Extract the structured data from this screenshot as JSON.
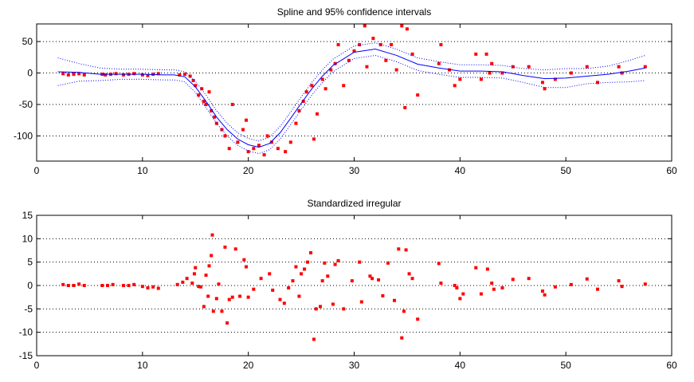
{
  "chart_data": [
    {
      "type": "line",
      "title": "Spline and 95% confidence intervals",
      "xlim": [
        0,
        60
      ],
      "ylim": [
        -140,
        78
      ],
      "xticks": [
        0,
        10,
        20,
        30,
        40,
        50,
        60
      ],
      "yticks": [
        -100,
        -50,
        0,
        50
      ],
      "grid": true,
      "series": [
        {
          "color": "#ff0000",
          "marker": "square",
          "x": [
            2.5,
            3,
            3.5,
            4,
            4.5,
            6.2,
            6.5,
            7,
            7.5,
            8.2,
            8.7,
            9.2,
            10,
            10.5,
            11,
            11.5,
            13.5,
            14,
            14.5,
            14.8,
            15,
            15.3,
            15.6,
            15.8,
            16,
            16.3,
            16.5,
            16.8,
            17,
            17.5,
            17.8,
            18.2,
            18.5,
            19,
            19.5,
            19.8,
            20,
            20.5,
            21,
            21.5,
            21.8,
            22.2,
            22.8,
            23.5,
            24,
            24.5,
            24.8,
            25.2,
            25.5,
            26,
            26.2,
            26.5,
            27,
            27.3,
            27.8,
            28.2,
            28.5,
            29,
            29.5,
            30,
            30.5,
            31,
            31.2,
            31.8,
            32.5,
            33,
            33.5,
            34,
            34.5,
            34.8,
            35,
            35.5,
            36,
            38,
            38.2,
            39,
            39.5,
            40,
            41.5,
            42,
            42.5,
            42.8,
            43,
            44,
            45,
            46.5,
            47.8,
            48,
            49,
            50.5,
            52,
            53,
            55,
            55.3,
            57.5
          ],
          "values": [
            -1,
            -3,
            -2,
            -1,
            -3,
            -2,
            -3,
            -2,
            -1,
            -3,
            -2,
            -1,
            -3,
            -4,
            -2,
            -1,
            -3,
            -2,
            -5,
            -12,
            -20,
            -35,
            -25,
            -45,
            -50,
            -30,
            -60,
            -70,
            -80,
            -90,
            -100,
            -120,
            -50,
            -110,
            -90,
            -75,
            -125,
            -120,
            -115,
            -130,
            -100,
            -110,
            -120,
            -125,
            -110,
            -80,
            -60,
            -45,
            -30,
            -20,
            -105,
            -65,
            -10,
            -25,
            5,
            15,
            45,
            -20,
            20,
            35,
            45,
            75,
            10,
            55,
            45,
            20,
            45,
            5,
            75,
            -55,
            70,
            30,
            -35,
            15,
            45,
            5,
            -20,
            -10,
            30,
            -10,
            30,
            0,
            15,
            0,
            10,
            10,
            -15,
            -25,
            -10,
            0,
            10,
            -15,
            10,
            0,
            10
          ]
        },
        {
          "color": "#0000ff",
          "line": "solid",
          "x": [
            2,
            4,
            6,
            8,
            10,
            12,
            13,
            14,
            15,
            16,
            17,
            18,
            19,
            20,
            21,
            22,
            23,
            24,
            25,
            26,
            27,
            28,
            30,
            32,
            34,
            36,
            38,
            40,
            42,
            44,
            46,
            48,
            50,
            52,
            54,
            56,
            57.5
          ],
          "values": [
            2,
            1,
            -2,
            -2,
            -2,
            -3,
            -3,
            -6,
            -22,
            -45,
            -70,
            -90,
            -105,
            -114,
            -118,
            -112,
            -95,
            -72,
            -48,
            -25,
            -5,
            12,
            33,
            38,
            28,
            14,
            8,
            3,
            3,
            2,
            -4,
            -9,
            -8,
            -5,
            -2,
            3,
            8
          ]
        },
        {
          "color": "#0000ff",
          "line": "dotted",
          "x": [
            2,
            4,
            6,
            8,
            10,
            12,
            13,
            14,
            15,
            16,
            17,
            18,
            19,
            20,
            21,
            22,
            23,
            24,
            25,
            26,
            27,
            28,
            30,
            32,
            34,
            36,
            38,
            40,
            42,
            44,
            46,
            48,
            50,
            52,
            54,
            56,
            57.5
          ],
          "values": [
            24,
            15,
            8,
            6,
            6,
            5,
            5,
            2,
            -13,
            -35,
            -60,
            -80,
            -95,
            -104,
            -108,
            -102,
            -85,
            -62,
            -38,
            -15,
            5,
            22,
            43,
            48,
            38,
            24,
            18,
            13,
            13,
            12,
            7,
            5,
            7,
            7,
            11,
            20,
            28
          ]
        },
        {
          "color": "#0000ff",
          "line": "dotted",
          "x": [
            2,
            4,
            6,
            8,
            10,
            12,
            13,
            14,
            15,
            16,
            17,
            18,
            19,
            20,
            21,
            22,
            23,
            24,
            25,
            26,
            27,
            28,
            30,
            32,
            34,
            36,
            38,
            40,
            42,
            44,
            46,
            48,
            50,
            52,
            54,
            56,
            57.5
          ],
          "values": [
            -20,
            -13,
            -12,
            -10,
            -10,
            -11,
            -11,
            -14,
            -31,
            -55,
            -80,
            -100,
            -115,
            -124,
            -128,
            -122,
            -105,
            -82,
            -58,
            -35,
            -15,
            2,
            23,
            28,
            18,
            4,
            -2,
            -7,
            -7,
            -8,
            -15,
            -23,
            -23,
            -17,
            -15,
            -14,
            -12
          ]
        }
      ]
    },
    {
      "type": "scatter",
      "title": "Standardized irregular",
      "xlim": [
        0,
        60
      ],
      "ylim": [
        -15,
        15
      ],
      "xticks": [
        0,
        10,
        20,
        30,
        40,
        50,
        60
      ],
      "yticks": [
        -15,
        -10,
        -5,
        0,
        5,
        10,
        15
      ],
      "grid": true,
      "series": [
        {
          "color": "#ff0000",
          "marker": "square",
          "x": [
            2.5,
            3,
            3.5,
            4,
            4.5,
            6.2,
            6.7,
            7.2,
            8.2,
            8.7,
            9.2,
            10,
            10.5,
            11,
            11.5,
            13.3,
            13.8,
            14.2,
            14.7,
            14.9,
            15,
            15.3,
            15.5,
            15.8,
            16,
            16.2,
            16.3,
            16.5,
            16.6,
            16.7,
            17,
            17.2,
            17.5,
            17.8,
            18,
            18.2,
            18.5,
            18.8,
            19.2,
            19.6,
            19.8,
            20,
            20.5,
            21.2,
            22,
            22.3,
            23,
            23.4,
            23.8,
            24.2,
            24.5,
            24.8,
            25,
            25.3,
            25.6,
            25.9,
            26.2,
            26.4,
            26.8,
            27,
            27.2,
            27.5,
            28,
            28.2,
            28.5,
            29,
            29.8,
            30.5,
            30.7,
            31.5,
            31.7,
            32.3,
            32.7,
            33.2,
            33.8,
            34.2,
            34.5,
            34.7,
            34.9,
            35.2,
            35.5,
            36,
            38,
            38.2,
            39.5,
            39.7,
            40,
            40.3,
            41.5,
            42,
            42.6,
            43,
            43.2,
            44,
            45,
            46.5,
            47.8,
            48,
            49,
            50.5,
            52,
            53,
            55,
            55.3,
            57.5
          ],
          "values": [
            0.2,
            0,
            0,
            0.3,
            0,
            0,
            0,
            0.2,
            0,
            0,
            0.2,
            -0.2,
            -0.5,
            -0.3,
            -0.6,
            0.2,
            0.7,
            1.5,
            0.5,
            2.5,
            3.8,
            -0.2,
            -0.3,
            -4.5,
            2.2,
            -2.3,
            4.2,
            6.4,
            10.8,
            -5.5,
            -2.8,
            0.3,
            -5.5,
            8.2,
            -8,
            -3,
            -2.5,
            7.8,
            -2.3,
            5.5,
            4,
            -2.5,
            -0.8,
            1.5,
            2.5,
            -1,
            -3,
            -3.8,
            -0.5,
            1,
            4,
            -2.3,
            2.5,
            3.5,
            5,
            7,
            -11.5,
            -5,
            -4.5,
            1,
            4.8,
            2,
            -4,
            4.5,
            5.3,
            -5,
            1,
            5,
            -3.5,
            2,
            1.5,
            1.2,
            -2.2,
            4.8,
            -3.2,
            7.8,
            -11.2,
            -5.5,
            7.6,
            2.5,
            1.5,
            -7.2,
            4.7,
            0.5,
            0,
            -0.5,
            -2.8,
            -1.8,
            3.8,
            -1.8,
            3.5,
            0.5,
            -0.8,
            -0.5,
            1.3,
            1.5,
            -1.2,
            -2,
            -0.3,
            0.2,
            1.4,
            -0.8,
            1,
            -0.2,
            0.3
          ]
        }
      ]
    }
  ]
}
